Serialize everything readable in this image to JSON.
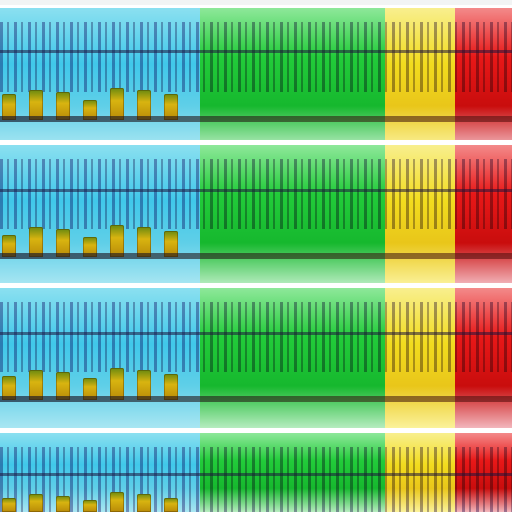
{
  "screen": {
    "bands": [
      {
        "id": "band-1"
      },
      {
        "id": "band-2"
      },
      {
        "id": "band-3"
      },
      {
        "id": "band-4"
      }
    ],
    "colors": {
      "cyan": "#40c8ea",
      "green": "#22cc3a",
      "yellow": "#f2dc1e",
      "red": "#e81818",
      "separator": "#ffffff"
    }
  }
}
